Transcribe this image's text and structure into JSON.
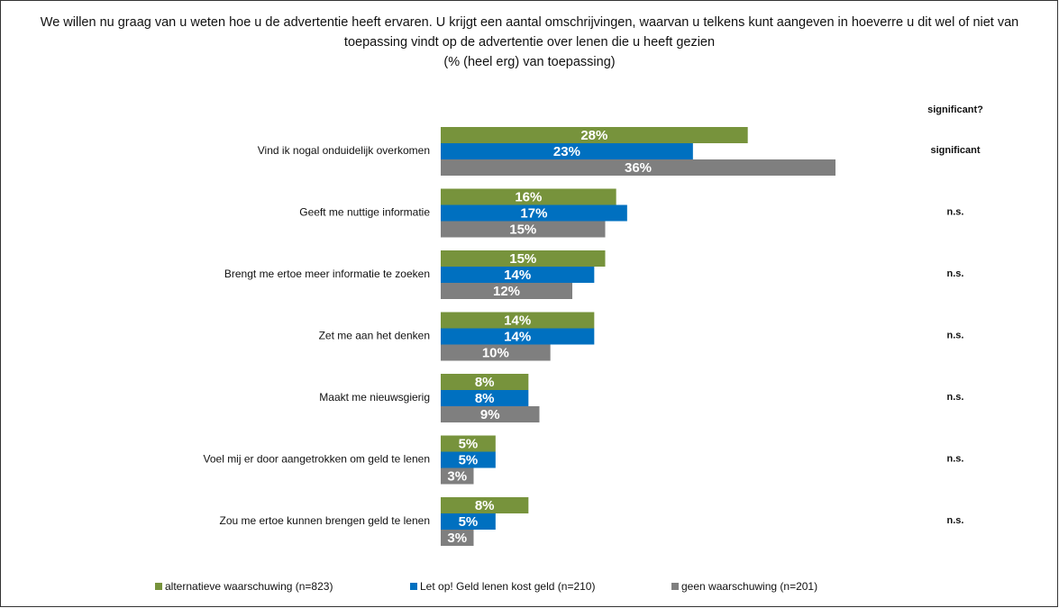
{
  "chart_data": {
    "type": "bar",
    "orientation": "horizontal",
    "title": "We willen nu graag van u weten hoe u de advertentie heeft ervaren. U krijgt een aantal omschrijvingen, waarvan u telkens kunt aangeven in hoeverre u dit wel of niet van toepassing vindt op de advertentie over lenen die u heeft gezien",
    "subtitle": "(% (heel erg) van toepassing)",
    "categories": [
      "Vind ik nogal onduidelijk overkomen",
      "Geeft me nuttige informatie",
      "Brengt me ertoe meer informatie te zoeken",
      "Zet me aan het denken",
      "Maakt me nieuwsgierig",
      "Voel mij er door aangetrokken om geld te lenen",
      "Zou me ertoe kunnen brengen geld te lenen"
    ],
    "series": [
      {
        "name": "alternatieve waarschuwing (n=823)",
        "color": "#77933c",
        "values": [
          28,
          16,
          15,
          14,
          8,
          5,
          8
        ],
        "value_labels": [
          "28%",
          "16%",
          "15%",
          "14%",
          "8%",
          "5%",
          "8%"
        ]
      },
      {
        "name": "Let op! Geld lenen kost geld (n=210)",
        "color": "#0070c0",
        "values": [
          23,
          17,
          14,
          14,
          8,
          5,
          5
        ],
        "value_labels": [
          "23%",
          "17%",
          "14%",
          "14%",
          "8%",
          "5%",
          "5%"
        ]
      },
      {
        "name": "geen waarschuwing (n=201)",
        "color": "#7f7f7f",
        "values": [
          36,
          15,
          12,
          10,
          9,
          3,
          3
        ],
        "value_labels": [
          "36%",
          "15%",
          "12%",
          "10%",
          "9%",
          "3%",
          "3%"
        ]
      }
    ],
    "significance_header": "significant?",
    "significance": [
      "significant",
      "n.s.",
      "n.s.",
      "n.s.",
      "n.s.",
      "n.s.",
      "n.s."
    ],
    "legend": "bottom"
  }
}
